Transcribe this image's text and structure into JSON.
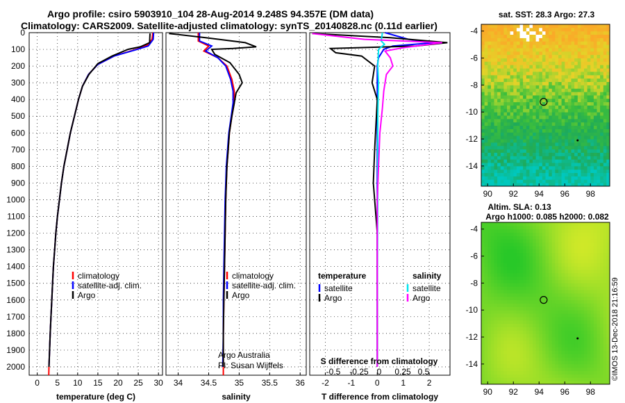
{
  "header": {
    "line1": "Argo profile: csiro 5903910_104 28-Aug-2014 9.248S 94.357E (DM data)",
    "line2": "Climatology: CARS2009. Satellite-adjusted climatology: synTS_20140828.nc (0.11d earlier)"
  },
  "colors": {
    "climatology": "#ff0000",
    "satellite": "#0000ff",
    "argo": "#000000",
    "sat_salinity": "#00e5ee",
    "argo_salinity": "#ff00ff"
  },
  "credits": {
    "line1": "Argo Australia",
    "line2": "PI: Susan Wijffels"
  },
  "watermark": "©IMOS 13-Dec-2018 21:16:59",
  "depth_ticks": [
    "0",
    "100",
    "200",
    "300",
    "400",
    "500",
    "600",
    "700",
    "800",
    "900",
    "1000",
    "1100",
    "1200",
    "1300",
    "1400",
    "1500",
    "1600",
    "1700",
    "1800",
    "1900",
    "2000"
  ],
  "chart_data": [
    {
      "type": "line",
      "panel": "temperature",
      "xlabel": "temperature (deg C)",
      "ylabel": "",
      "xlim": [
        -2,
        31
      ],
      "ylim": [
        2050,
        0
      ],
      "xticks": [
        0,
        5,
        10,
        15,
        20,
        25,
        30
      ],
      "legend": [
        "climatology",
        "satellite-adj. clim.",
        "Argo"
      ],
      "series": [
        {
          "name": "climatology",
          "values": [
            [
              28.6,
              0
            ],
            [
              28.4,
              40
            ],
            [
              27.2,
              75
            ],
            [
              24.5,
              100
            ],
            [
              19,
              140
            ],
            [
              15,
              190
            ],
            [
              12.7,
              250
            ],
            [
              11.2,
              320
            ],
            [
              10.2,
              400
            ],
            [
              9.2,
              500
            ],
            [
              8.2,
              600
            ],
            [
              7.4,
              700
            ],
            [
              6.6,
              800
            ],
            [
              6,
              900
            ],
            [
              5.5,
              1000
            ],
            [
              5,
              1100
            ],
            [
              4.6,
              1200
            ],
            [
              4.3,
              1300
            ],
            [
              4,
              1400
            ],
            [
              3.8,
              1500
            ],
            [
              3.6,
              1600
            ],
            [
              3.4,
              1700
            ],
            [
              3.2,
              1800
            ],
            [
              3.05,
              1900
            ],
            [
              2.9,
              2000
            ],
            [
              2.85,
              2050
            ]
          ]
        },
        {
          "name": "satellite-adj. clim.",
          "values": [
            [
              28.8,
              0
            ],
            [
              28.7,
              40
            ],
            [
              27.5,
              80
            ],
            [
              24,
              105
            ],
            [
              19,
              140
            ],
            [
              15,
              190
            ],
            [
              12.7,
              250
            ],
            [
              11.2,
              320
            ],
            [
              10.2,
              400
            ],
            [
              9.2,
              500
            ],
            [
              8.2,
              600
            ],
            [
              7.4,
              700
            ],
            [
              6.6,
              800
            ],
            [
              6,
              900
            ],
            [
              5.5,
              1000
            ],
            [
              5,
              1100
            ],
            [
              4.6,
              1200
            ],
            [
              4.3,
              1300
            ],
            [
              4,
              1400
            ],
            [
              3.8,
              1500
            ],
            [
              3.6,
              1600
            ],
            [
              3.4,
              1700
            ],
            [
              3.2,
              1800
            ],
            [
              3.05,
              1900
            ],
            [
              2.9,
              2000
            ]
          ]
        },
        {
          "name": "Argo",
          "values": [
            [
              27.9,
              5
            ],
            [
              27.8,
              60
            ],
            [
              25.5,
              85
            ],
            [
              22.5,
              100
            ],
            [
              18.5,
              140
            ],
            [
              15,
              185
            ],
            [
              12.8,
              250
            ],
            [
              11.2,
              320
            ],
            [
              10.2,
              400
            ],
            [
              9.2,
              500
            ],
            [
              8.2,
              600
            ],
            [
              7.4,
              700
            ],
            [
              6.6,
              800
            ],
            [
              6,
              900
            ],
            [
              5.5,
              1000
            ],
            [
              5,
              1100
            ],
            [
              4.6,
              1200
            ],
            [
              4.3,
              1300
            ],
            [
              4,
              1400
            ],
            [
              3.8,
              1500
            ],
            [
              3.6,
              1600
            ],
            [
              3.4,
              1700
            ],
            [
              3.2,
              1800
            ],
            [
              3.05,
              1900
            ],
            [
              2.9,
              2000
            ]
          ]
        }
      ]
    },
    {
      "type": "line",
      "panel": "salinity",
      "xlabel": "salinity",
      "ylabel": "",
      "xlim": [
        33.8,
        36.1
      ],
      "ylim": [
        2050,
        0
      ],
      "xticks": [
        34,
        34.5,
        35,
        35.5,
        36
      ],
      "legend": [
        "climatology",
        "satellite-adj. clim.",
        "Argo"
      ],
      "series": [
        {
          "name": "climatology",
          "values": [
            [
              34.33,
              0
            ],
            [
              34.33,
              50
            ],
            [
              34.5,
              80
            ],
            [
              34.42,
              110
            ],
            [
              34.65,
              150
            ],
            [
              34.8,
              200
            ],
            [
              34.88,
              280
            ],
            [
              34.92,
              350
            ],
            [
              34.92,
              420
            ],
            [
              34.88,
              500
            ],
            [
              34.84,
              600
            ],
            [
              34.82,
              700
            ],
            [
              34.8,
              800
            ],
            [
              34.79,
              900
            ],
            [
              34.78,
              1000
            ],
            [
              34.77,
              1200
            ],
            [
              34.76,
              1400
            ],
            [
              34.75,
              1600
            ],
            [
              34.74,
              1800
            ],
            [
              34.74,
              2000
            ],
            [
              34.74,
              2050
            ]
          ]
        },
        {
          "name": "satellite-adj. clim.",
          "values": [
            [
              34.35,
              0
            ],
            [
              34.35,
              50
            ],
            [
              34.55,
              80
            ],
            [
              34.45,
              110
            ],
            [
              34.65,
              150
            ],
            [
              34.78,
              200
            ],
            [
              34.86,
              280
            ],
            [
              34.9,
              350
            ],
            [
              34.9,
              420
            ],
            [
              34.87,
              500
            ],
            [
              34.83,
              600
            ],
            [
              34.81,
              700
            ],
            [
              34.79,
              800
            ],
            [
              34.78,
              900
            ],
            [
              34.77,
              1000
            ],
            [
              34.76,
              1200
            ],
            [
              34.75,
              1400
            ],
            [
              34.74,
              1600
            ],
            [
              34.74,
              1800
            ],
            [
              34.73,
              2000
            ]
          ]
        },
        {
          "name": "Argo",
          "values": [
            [
              33.85,
              5
            ],
            [
              34.45,
              30
            ],
            [
              35.1,
              60
            ],
            [
              35.28,
              85
            ],
            [
              34.9,
              95
            ],
            [
              34.55,
              100
            ],
            [
              34.6,
              130
            ],
            [
              34.85,
              180
            ],
            [
              35.0,
              250
            ],
            [
              35.05,
              300
            ],
            [
              34.95,
              360
            ],
            [
              34.92,
              420
            ],
            [
              34.88,
              500
            ],
            [
              34.84,
              600
            ],
            [
              34.82,
              700
            ],
            [
              34.8,
              800
            ],
            [
              34.79,
              900
            ],
            [
              34.78,
              1000
            ],
            [
              34.77,
              1200
            ],
            [
              34.76,
              1400
            ],
            [
              34.75,
              1600
            ],
            [
              34.74,
              1800
            ],
            [
              34.74,
              2000
            ]
          ]
        }
      ]
    },
    {
      "type": "line",
      "panel": "difference",
      "xlabel": "T difference from climatology",
      "xlabel2": "S difference from climatology",
      "ylabel": "",
      "xlim": [
        -2.6,
        2.8
      ],
      "ylim": [
        2050,
        0
      ],
      "xticks": [
        -2,
        -1,
        0,
        1,
        2
      ],
      "xticks2": [
        "-0.5",
        "-0.25",
        "0",
        "0.25",
        "0.5"
      ],
      "legend_left_title": "temperature",
      "legend_right_title": "salinity",
      "legend_left": [
        "satellite",
        "Argo"
      ],
      "legend_right": [
        "satellite",
        "Argo"
      ],
      "series": [
        {
          "name": "satellite",
          "kind": "temperature",
          "values": [
            [
              0.3,
              0
            ],
            [
              1.2,
              40
            ],
            [
              2.2,
              60
            ],
            [
              0.6,
              80
            ],
            [
              0.25,
              100
            ],
            [
              0.05,
              150
            ],
            [
              0,
              200
            ],
            [
              0,
              400
            ],
            [
              0,
              800
            ],
            [
              0,
              1200
            ],
            [
              0,
              1600
            ],
            [
              0,
              2000
            ]
          ]
        },
        {
          "name": "Argo",
          "kind": "temperature",
          "values": [
            [
              -2.5,
              5
            ],
            [
              0.5,
              30
            ],
            [
              2.7,
              60
            ],
            [
              1.5,
              80
            ],
            [
              -1.8,
              95
            ],
            [
              -1.6,
              120
            ],
            [
              -0.6,
              140
            ],
            [
              -0.1,
              200
            ],
            [
              -0.2,
              300
            ],
            [
              0,
              400
            ],
            [
              -0.1,
              700
            ],
            [
              -0.15,
              900
            ],
            [
              -0.1,
              1000
            ],
            [
              -0.05,
              1100
            ],
            [
              0,
              1200
            ],
            [
              0,
              1400
            ],
            [
              0,
              1600
            ],
            [
              0,
              2000
            ]
          ]
        },
        {
          "name": "satellite",
          "kind": "salinity",
          "values": [
            [
              0.2,
              0
            ],
            [
              0.15,
              50
            ],
            [
              0.28,
              70
            ],
            [
              0.05,
              100
            ],
            [
              0.02,
              200
            ],
            [
              0.05,
              300
            ],
            [
              0.02,
              500
            ],
            [
              0.02,
              900
            ],
            [
              0.01,
              1300
            ],
            [
              0,
              1700
            ],
            [
              0,
              2000
            ]
          ]
        },
        {
          "name": "Argo",
          "kind": "salinity",
          "values": [
            [
              -2.5,
              5
            ],
            [
              -0.5,
              40
            ],
            [
              2.5,
              60
            ],
            [
              1,
              90
            ],
            [
              0.3,
              110
            ],
            [
              0.5,
              150
            ],
            [
              0.6,
              200
            ],
            [
              0.35,
              250
            ],
            [
              0.25,
              350
            ],
            [
              0.2,
              450
            ],
            [
              0.1,
              600
            ],
            [
              0.05,
              800
            ],
            [
              0,
              1000
            ],
            [
              0,
              1300
            ],
            [
              0,
              1500
            ],
            [
              0,
              2000
            ]
          ]
        }
      ]
    },
    {
      "type": "heatmap",
      "panel": "map-sst",
      "title": "sat. SST: 28.3 Argo: 27.3",
      "xlim": [
        89.5,
        99.5
      ],
      "ylim": [
        -15.5,
        -3.5
      ],
      "xticks": [
        90,
        92,
        94,
        96,
        98
      ],
      "yticks": [
        -4,
        -6,
        -8,
        -10,
        -12,
        -14
      ],
      "argo_position": [
        94.357,
        -9.248
      ]
    },
    {
      "type": "heatmap",
      "panel": "map-sla",
      "title": "Altim. SLA: 0.13",
      "title2": "Argo h1000: 0.085 h2000: 0.082",
      "xlim": [
        89.5,
        99.5
      ],
      "ylim": [
        -15.5,
        -3.5
      ],
      "xticks": [
        90,
        92,
        94,
        96,
        98
      ],
      "yticks": [
        -4,
        -6,
        -8,
        -10,
        -12,
        -14
      ],
      "argo_position": [
        94.357,
        -9.248
      ]
    }
  ]
}
